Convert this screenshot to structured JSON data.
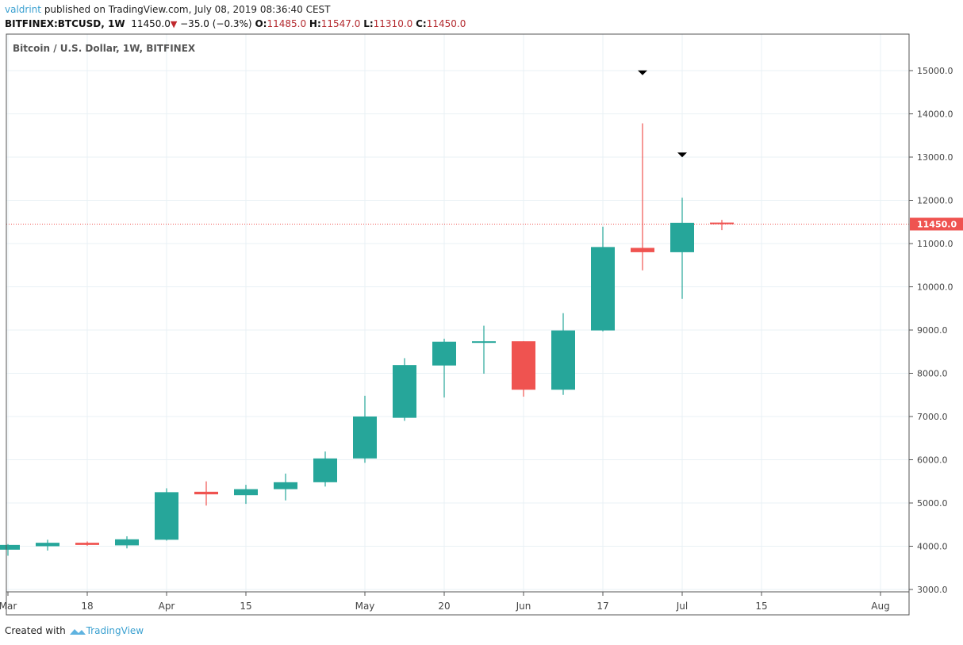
{
  "header": {
    "author": "valdrint",
    "published_text": "published on TradingView.com, July 08, 2019 08:36:40 CEST",
    "symbol": "BITFINEX:BTCUSD, 1W",
    "last": "11450.0",
    "change": "−35.0 (−0.3%)",
    "o_label": "O:",
    "o": "11485.0",
    "h_label": "H:",
    "h": "11547.0",
    "l_label": "L:",
    "l": "11310.0",
    "c_label": "C:",
    "c": "11450.0"
  },
  "footer": {
    "created_with": "Created with",
    "brand": "TradingView"
  },
  "chart_data": {
    "type": "candlestick",
    "title": "Bitcoin / U.S. Dollar, 1W, BITFINEX",
    "ylim": [
      2900,
      15800
    ],
    "y_ticks": [
      "3000.0",
      "4000.0",
      "5000.0",
      "6000.0",
      "7000.0",
      "8000.0",
      "9000.0",
      "10000.0",
      "11000.0",
      "12000.0",
      "13000.0",
      "14000.0",
      "15000.0"
    ],
    "x_ticks": [
      {
        "label": "Mar",
        "week": 0
      },
      {
        "label": "18",
        "week": 2
      },
      {
        "label": "Apr",
        "week": 4
      },
      {
        "label": "15",
        "week": 6
      },
      {
        "label": "May",
        "week": 9
      },
      {
        "label": "20",
        "week": 11
      },
      {
        "label": "Jun",
        "week": 13
      },
      {
        "label": "17",
        "week": 15
      },
      {
        "label": "Jul",
        "week": 17
      },
      {
        "label": "15",
        "week": 19
      },
      {
        "label": "Aug",
        "week": 22
      }
    ],
    "last_price": {
      "value": 11450,
      "label": "11450.0"
    },
    "colors": {
      "up": "#26a69a",
      "down": "#ef5350",
      "grid": "#e9f1f5"
    },
    "candles": [
      [
        3920,
        4050,
        3780,
        4030
      ],
      [
        4000,
        4150,
        3900,
        4080
      ],
      [
        4080,
        4110,
        4010,
        4030
      ],
      [
        4020,
        4230,
        3950,
        4160
      ],
      [
        4150,
        5340,
        4130,
        5250
      ],
      [
        5260,
        5500,
        4940,
        5200
      ],
      [
        5180,
        5420,
        4980,
        5320
      ],
      [
        5320,
        5680,
        5060,
        5480
      ],
      [
        5480,
        6190,
        5380,
        6030
      ],
      [
        6030,
        7480,
        5930,
        7000
      ],
      [
        6970,
        8350,
        6900,
        8190
      ],
      [
        8180,
        8800,
        7440,
        8730
      ],
      [
        8720,
        9100,
        7990,
        8740
      ],
      [
        8740,
        8740,
        7460,
        7620
      ],
      [
        7620,
        9390,
        7500,
        8990
      ],
      [
        8990,
        11390,
        8970,
        10920
      ],
      [
        10900,
        13780,
        10380,
        10800
      ],
      [
        10800,
        12060,
        9720,
        11480
      ],
      [
        11485,
        11547,
        11310,
        11450
      ]
    ],
    "candle_fields": [
      "open",
      "high",
      "low",
      "close"
    ],
    "markers": [
      {
        "week": 16,
        "value": 14950
      },
      {
        "week": 17,
        "value": 13050
      }
    ]
  }
}
